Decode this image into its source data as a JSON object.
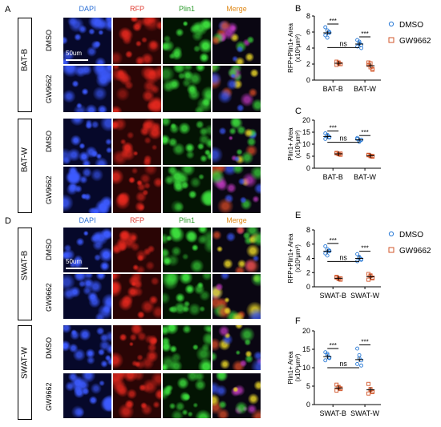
{
  "colors": {
    "dapi": "#2a6fd6",
    "rfp": "#e03a2f",
    "plin1": "#2a9a2a",
    "merge": "#e08a1a",
    "dmso": "#2b7bd6",
    "gw": "#d2562a"
  },
  "top": {
    "panel_label": "A",
    "col_headers": [
      "DAPI",
      "RFP",
      "Plin1",
      "Merge"
    ],
    "groups": [
      {
        "label": "BAT-B",
        "rows": [
          "DMSO",
          "GW9662"
        ]
      },
      {
        "label": "BAT-W",
        "rows": [
          "DMSO",
          "GW9662"
        ]
      }
    ],
    "scale": "50um"
  },
  "bottom": {
    "panel_label": "D",
    "col_headers": [
      "DAPI",
      "RFP",
      "Plin1",
      "Merge"
    ],
    "groups": [
      {
        "label": "SWAT-B",
        "rows": [
          "DMSO",
          "GW9662"
        ]
      },
      {
        "label": "SWAT-W",
        "rows": [
          "DMSO",
          "GW9662"
        ]
      }
    ],
    "scale": "50um"
  },
  "legend_top": {
    "dmso": "DMSO",
    "gw": "GW9662"
  },
  "legend_bottom": {
    "dmso": "DMSO",
    "gw": "GW9662"
  },
  "chart_data": [
    {
      "panel": "B",
      "type": "scatter",
      "ylabel": "RFP+Plin1+ Area",
      "yunit": "(x10³μm²)",
      "ylim": [
        0,
        8
      ],
      "yticks": [
        0,
        2,
        4,
        6,
        8
      ],
      "categories": [
        "BAT-B",
        "BAT-W"
      ],
      "series": [
        {
          "name": "DMSO",
          "means": [
            5.9,
            4.5
          ],
          "points": [
            [
              6.6,
              6.2,
              5.9,
              5.6,
              5.3,
              6.0
            ],
            [
              5.0,
              4.6,
              4.4,
              4.2,
              4.8,
              4.0
            ]
          ]
        },
        {
          "name": "GW9662",
          "means": [
            2.1,
            1.8
          ],
          "points": [
            [
              2.3,
              2.1,
              2.0,
              1.9,
              2.2,
              2.0
            ],
            [
              2.2,
              1.6,
              1.4,
              1.9,
              2.1,
              1.3
            ]
          ]
        }
      ],
      "annotations": [
        {
          "text": "***",
          "between": "BAT-B"
        },
        {
          "text": "***",
          "between": "BAT-W"
        },
        {
          "text": "ns",
          "between": "DMSO"
        }
      ]
    },
    {
      "panel": "C",
      "type": "scatter",
      "ylabel": "Plin1+ Area",
      "yunit": "(x10³μm²)",
      "ylim": [
        0,
        20
      ],
      "yticks": [
        0,
        5,
        10,
        15,
        20
      ],
      "categories": [
        "BAT-B",
        "BAT-W"
      ],
      "series": [
        {
          "name": "DMSO",
          "means": [
            13.2,
            11.8
          ],
          "points": [
            [
              14.5,
              13.6,
              12.8,
              12.2,
              13.9,
              13.0
            ],
            [
              12.6,
              11.4,
              11.9,
              12.2,
              11.0,
              11.8
            ]
          ]
        },
        {
          "name": "GW9662",
          "means": [
            6.0,
            5.2
          ],
          "points": [
            [
              6.4,
              5.8,
              5.6,
              6.2,
              5.9,
              6.1
            ],
            [
              5.4,
              5.0,
              4.8,
              5.6,
              5.2,
              5.1
            ]
          ]
        }
      ],
      "annotations": [
        {
          "text": "***",
          "between": "BAT-B"
        },
        {
          "text": "***",
          "between": "BAT-W"
        },
        {
          "text": "ns",
          "between": "DMSO"
        }
      ]
    },
    {
      "panel": "E",
      "type": "scatter",
      "ylabel": "RFP+Plin1+ Area",
      "yunit": "(x10³μm²)",
      "ylim": [
        0,
        8
      ],
      "yticks": [
        0,
        2,
        4,
        6,
        8
      ],
      "categories": [
        "SWAT-B",
        "SWAT-W"
      ],
      "series": [
        {
          "name": "DMSO",
          "means": [
            5.0,
            4.0
          ],
          "points": [
            [
              5.7,
              5.3,
              5.0,
              4.7,
              4.4,
              5.1
            ],
            [
              4.6,
              4.2,
              3.8,
              3.6,
              4.1,
              3.9
            ]
          ]
        },
        {
          "name": "GW9662",
          "means": [
            1.2,
            1.4
          ],
          "points": [
            [
              1.4,
              1.2,
              1.0,
              1.3,
              1.1,
              1.2
            ],
            [
              1.8,
              1.5,
              1.2,
              1.0,
              1.6,
              1.3
            ]
          ]
        }
      ],
      "annotations": [
        {
          "text": "***",
          "between": "SWAT-B"
        },
        {
          "text": "***",
          "between": "SWAT-W"
        },
        {
          "text": "ns",
          "between": "DMSO"
        }
      ]
    },
    {
      "panel": "F",
      "type": "scatter",
      "ylabel": "Plin1+ Area",
      "yunit": "(x10³μm²)",
      "ylim": [
        0,
        20
      ],
      "yticks": [
        0,
        5,
        10,
        15,
        20
      ],
      "categories": [
        "SWAT-B",
        "SWAT-W"
      ],
      "series": [
        {
          "name": "DMSO",
          "means": [
            13.0,
            12.2
          ],
          "points": [
            [
              14.2,
              13.4,
              12.6,
              12.0,
              13.8,
              12.8
            ],
            [
              15.2,
              13.4,
              12.0,
              11.0,
              12.6,
              10.6
            ]
          ]
        },
        {
          "name": "GW9662",
          "means": [
            4.5,
            4.0
          ],
          "points": [
            [
              5.4,
              4.8,
              4.2,
              3.8,
              4.6,
              4.4
            ],
            [
              5.6,
              4.2,
              3.4,
              3.0,
              4.0,
              3.6
            ]
          ]
        }
      ],
      "annotations": [
        {
          "text": "***",
          "between": "SWAT-B"
        },
        {
          "text": "***",
          "between": "SWAT-W"
        },
        {
          "text": "ns",
          "between": "DMSO"
        }
      ]
    }
  ]
}
